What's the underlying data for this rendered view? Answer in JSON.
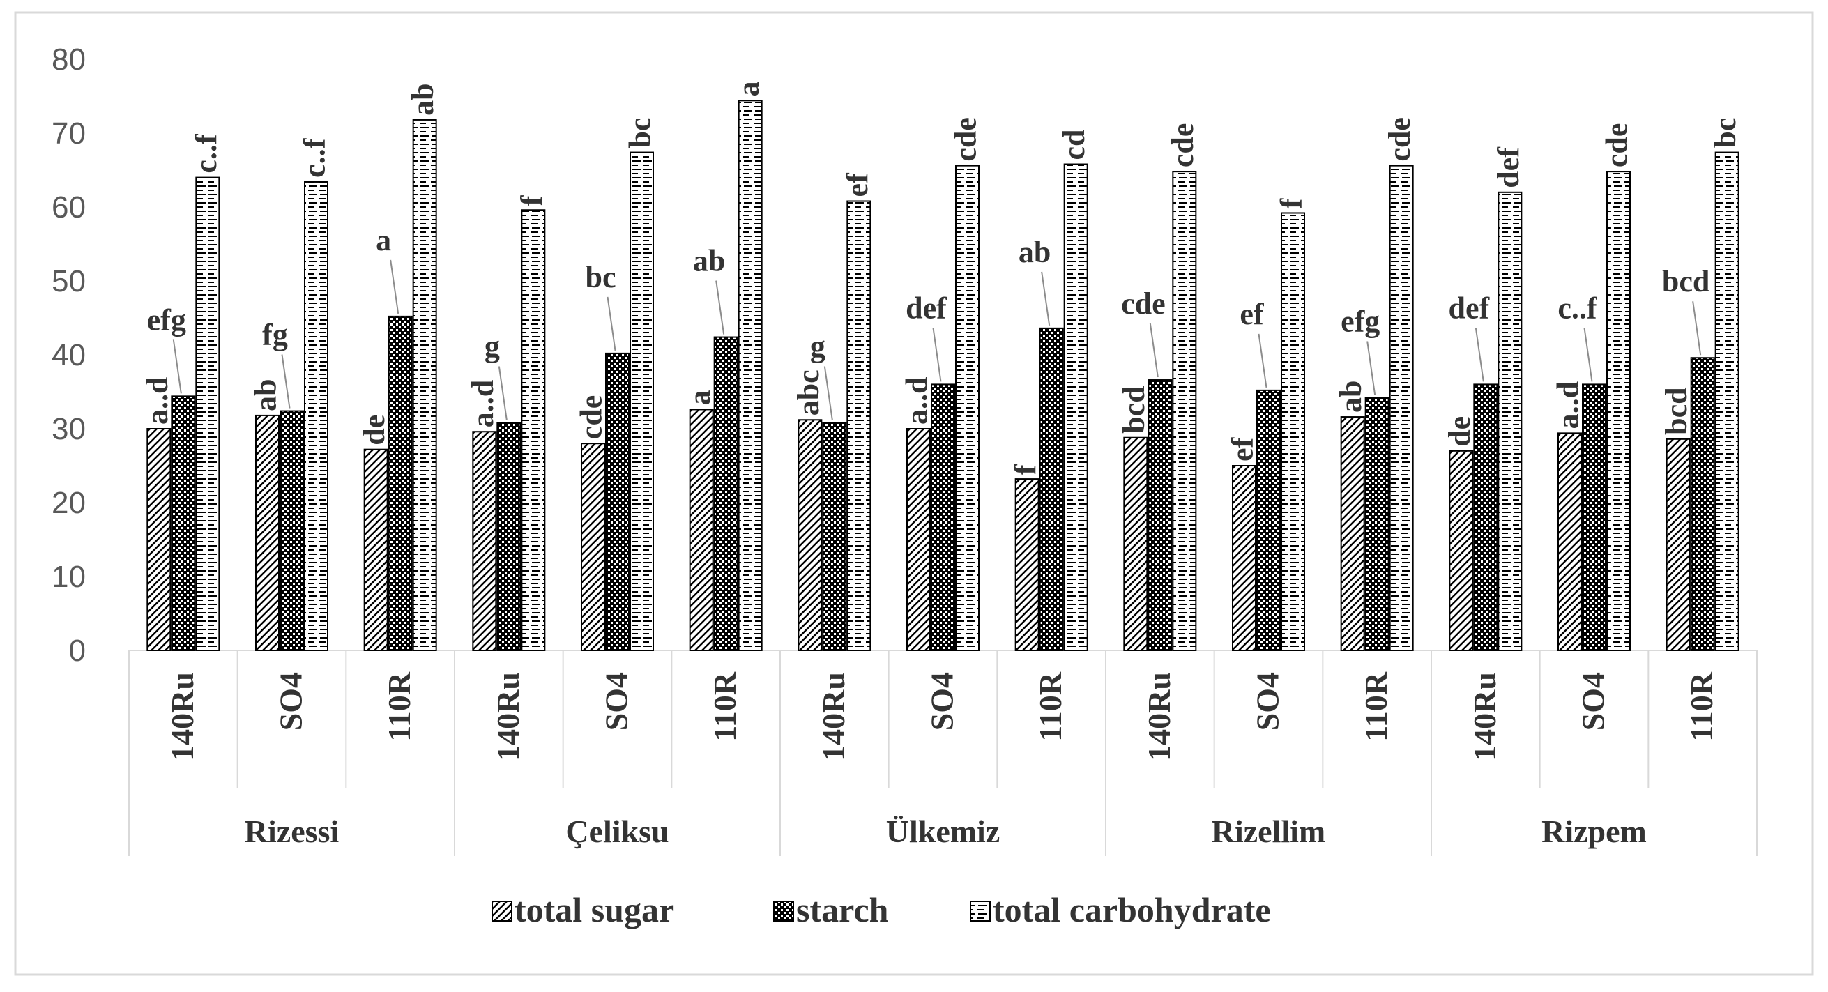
{
  "chart_data": {
    "type": "bar",
    "title": "",
    "xlabel": "",
    "ylabel": "",
    "ylim": [
      0,
      80
    ],
    "yticks": [
      0,
      10,
      20,
      30,
      40,
      50,
      60,
      70,
      80
    ],
    "groups": [
      {
        "label": "Rizessi",
        "categories": [
          "140Ru",
          "SO4",
          "110R"
        ]
      },
      {
        "label": "Çeliksu",
        "categories": [
          "140Ru",
          "SO4",
          "110R"
        ]
      },
      {
        "label": "Ülkemiz",
        "categories": [
          "140Ru",
          "SO4",
          "110R"
        ]
      },
      {
        "label": "Rizellim",
        "categories": [
          "140Ru",
          "SO4",
          "110R"
        ]
      },
      {
        "label": "Rizpem",
        "categories": [
          "140Ru",
          "SO4",
          "110R"
        ]
      }
    ],
    "categories": [
      "140Ru",
      "SO4",
      "110R",
      "140Ru",
      "SO4",
      "110R",
      "140Ru",
      "SO4",
      "110R",
      "140Ru",
      "SO4",
      "110R",
      "140Ru",
      "SO4",
      "110R"
    ],
    "series": [
      {
        "name": "total sugar",
        "pattern": "diagonal",
        "values": [
          30.0,
          31.8,
          27.2,
          29.6,
          28.0,
          32.6,
          31.2,
          30.0,
          23.2,
          28.8,
          25.0,
          31.6,
          27.0,
          29.4,
          28.6
        ],
        "labels": [
          "a..d",
          "ab",
          "de",
          "a..d",
          "cde",
          "a",
          "abc",
          "a..d",
          "f",
          "bcd",
          "ef",
          "ab",
          "de",
          "a..d",
          "bcd"
        ]
      },
      {
        "name": "starch",
        "pattern": "checker",
        "values": [
          34.4,
          32.4,
          45.2,
          30.8,
          40.2,
          42.4,
          30.8,
          36.0,
          43.6,
          36.6,
          35.2,
          34.2,
          36.0,
          36.0,
          39.6
        ],
        "labels": [
          "efg",
          "fg",
          "a",
          "g",
          "bc",
          "ab",
          "g",
          "def",
          "ab",
          "cde",
          "ef",
          "efg",
          "def",
          "c..f",
          "bcd"
        ]
      },
      {
        "name": "total carbohydrate",
        "pattern": "brick",
        "values": [
          64.0,
          63.4,
          71.8,
          59.6,
          67.4,
          74.4,
          60.8,
          65.6,
          65.8,
          64.8,
          59.2,
          65.6,
          62.0,
          64.8,
          67.4
        ],
        "labels": [
          "c..f",
          "c..f",
          "ab",
          "f",
          "bc",
          "a",
          "ef",
          "cde",
          "cd",
          "cde",
          "f",
          "cde",
          "def",
          "cde",
          "bc"
        ]
      }
    ],
    "legend": {
      "position": "bottom",
      "entries": [
        "total sugar",
        "starch",
        "total carbohydrate"
      ]
    }
  }
}
